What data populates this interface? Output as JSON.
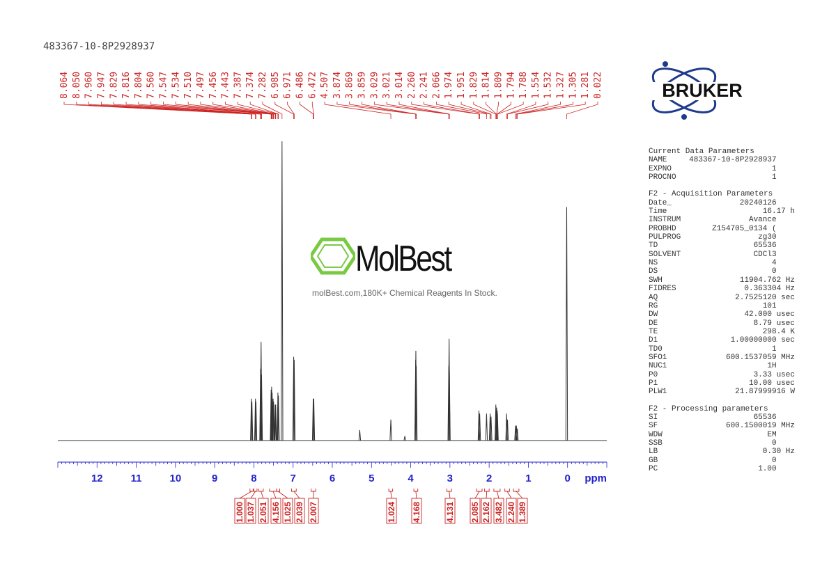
{
  "sample_id": "483367-10-8P2928937",
  "logo_text": "BRUKER",
  "watermark": {
    "name": "MolBest",
    "tagline": "molBest.com,180K+ Chemical Reagents In Stock."
  },
  "colors": {
    "spectrum": "#333333",
    "peak_labels": "#cc2222",
    "axis": "#2222cc",
    "logo_blue": "#1e3a8a",
    "watermark_green": "#7ac943"
  },
  "parameters": {
    "current": {
      "title": "Current Data Parameters",
      "rows": [
        [
          "NAME",
          "483367-10-8P2928937"
        ],
        [
          "EXPNO",
          "1"
        ],
        [
          "PROCNO",
          "1"
        ]
      ]
    },
    "acquisition": {
      "title": "F2 - Acquisition Parameters",
      "rows": [
        [
          "Date_",
          "20240126"
        ],
        [
          "Time",
          "16.17 h"
        ],
        [
          "INSTRUM",
          "Avance"
        ],
        [
          "PROBHD",
          "Z154705_0134 ("
        ],
        [
          "PULPROG",
          "zg30"
        ],
        [
          "TD",
          "65536"
        ],
        [
          "SOLVENT",
          "CDCl3"
        ],
        [
          "NS",
          "4"
        ],
        [
          "DS",
          "0"
        ],
        [
          "SWH",
          "11904.762 Hz"
        ],
        [
          "FIDRES",
          "0.363304 Hz"
        ],
        [
          "AQ",
          "2.7525120 sec"
        ],
        [
          "RG",
          "101"
        ],
        [
          "DW",
          "42.000 usec"
        ],
        [
          "DE",
          "8.79 usec"
        ],
        [
          "TE",
          "298.4 K"
        ],
        [
          "D1",
          "1.00000000 sec"
        ],
        [
          "TD0",
          "1"
        ],
        [
          "SFO1",
          "600.1537059 MHz"
        ],
        [
          "NUC1",
          "1H"
        ],
        [
          "P0",
          "3.33 usec"
        ],
        [
          "P1",
          "10.00 usec"
        ],
        [
          "PLW1",
          "21.87999916 W"
        ]
      ]
    },
    "processing": {
      "title": "F2 - Processing parameters",
      "rows": [
        [
          "SI",
          "65536"
        ],
        [
          "SF",
          "600.1500019 MHz"
        ],
        [
          "WDW",
          "EM"
        ],
        [
          "SSB",
          "0"
        ],
        [
          "LB",
          "0.30 Hz"
        ],
        [
          "GB",
          "0"
        ],
        [
          "PC",
          "1.00"
        ]
      ]
    }
  },
  "chart_data": {
    "type": "line",
    "xlabel": "ppm",
    "xlim": [
      13.0,
      -1.0
    ],
    "x_ticks": [
      "12",
      "11",
      "10",
      "9",
      "8",
      "7",
      "6",
      "5",
      "4",
      "3",
      "2",
      "1",
      "0"
    ],
    "peak_labels": [
      "8.064",
      "8.050",
      "7.960",
      "7.947",
      "7.829",
      "7.816",
      "7.804",
      "7.560",
      "7.547",
      "7.534",
      "7.510",
      "7.497",
      "7.456",
      "7.443",
      "7.387",
      "7.374",
      "7.282",
      "6.985",
      "6.971",
      "6.486",
      "6.472",
      "4.507",
      "3.874",
      "3.869",
      "3.859",
      "3.029",
      "3.021",
      "3.014",
      "2.260",
      "2.241",
      "2.066",
      "1.974",
      "1.951",
      "1.829",
      "1.814",
      "1.809",
      "1.794",
      "1.788",
      "1.554",
      "1.532",
      "1.327",
      "1.305",
      "1.281",
      "0.022"
    ],
    "peaks": [
      {
        "ppm": 8.064,
        "h": 0.14
      },
      {
        "ppm": 8.05,
        "h": 0.13
      },
      {
        "ppm": 7.96,
        "h": 0.14
      },
      {
        "ppm": 7.947,
        "h": 0.13
      },
      {
        "ppm": 7.829,
        "h": 0.24
      },
      {
        "ppm": 7.816,
        "h": 0.33
      },
      {
        "ppm": 7.804,
        "h": 0.22
      },
      {
        "ppm": 7.56,
        "h": 0.17
      },
      {
        "ppm": 7.547,
        "h": 0.18
      },
      {
        "ppm": 7.534,
        "h": 0.16
      },
      {
        "ppm": 7.51,
        "h": 0.14
      },
      {
        "ppm": 7.497,
        "h": 0.13
      },
      {
        "ppm": 7.456,
        "h": 0.12
      },
      {
        "ppm": 7.443,
        "h": 0.12
      },
      {
        "ppm": 7.387,
        "h": 0.16
      },
      {
        "ppm": 7.374,
        "h": 0.15
      },
      {
        "ppm": 7.282,
        "h": 1.0
      },
      {
        "ppm": 6.985,
        "h": 0.28
      },
      {
        "ppm": 6.971,
        "h": 0.27
      },
      {
        "ppm": 6.486,
        "h": 0.14
      },
      {
        "ppm": 6.472,
        "h": 0.14
      },
      {
        "ppm": 5.3,
        "h": 0.035
      },
      {
        "ppm": 4.507,
        "h": 0.07
      },
      {
        "ppm": 4.15,
        "h": 0.015
      },
      {
        "ppm": 3.874,
        "h": 0.27
      },
      {
        "ppm": 3.869,
        "h": 0.3
      },
      {
        "ppm": 3.859,
        "h": 0.25
      },
      {
        "ppm": 3.029,
        "h": 0.25
      },
      {
        "ppm": 3.021,
        "h": 0.34
      },
      {
        "ppm": 3.014,
        "h": 0.24
      },
      {
        "ppm": 2.26,
        "h": 0.1
      },
      {
        "ppm": 2.241,
        "h": 0.09
      },
      {
        "ppm": 2.066,
        "h": 0.09
      },
      {
        "ppm": 1.974,
        "h": 0.09
      },
      {
        "ppm": 1.951,
        "h": 0.08
      },
      {
        "ppm": 1.829,
        "h": 0.12
      },
      {
        "ppm": 1.814,
        "h": 0.1
      },
      {
        "ppm": 1.809,
        "h": 0.11
      },
      {
        "ppm": 1.794,
        "h": 0.1
      },
      {
        "ppm": 1.788,
        "h": 0.09
      },
      {
        "ppm": 1.554,
        "h": 0.09
      },
      {
        "ppm": 1.532,
        "h": 0.07
      },
      {
        "ppm": 1.327,
        "h": 0.05
      },
      {
        "ppm": 1.305,
        "h": 0.05
      },
      {
        "ppm": 1.281,
        "h": 0.04
      },
      {
        "ppm": 0.022,
        "h": 0.78
      }
    ],
    "integrals": [
      {
        "from": 8.1,
        "to": 8.02,
        "value": "1.000"
      },
      {
        "from": 8.0,
        "to": 7.92,
        "value": "1.037"
      },
      {
        "from": 7.88,
        "to": 7.76,
        "value": "2.051"
      },
      {
        "from": 7.6,
        "to": 7.42,
        "value": "4.156"
      },
      {
        "from": 7.42,
        "to": 7.34,
        "value": "1.025"
      },
      {
        "from": 7.04,
        "to": 6.92,
        "value": "2.039"
      },
      {
        "from": 6.54,
        "to": 6.42,
        "value": "2.007"
      },
      {
        "from": 4.56,
        "to": 4.46,
        "value": "1.024"
      },
      {
        "from": 3.92,
        "to": 3.82,
        "value": "4.168"
      },
      {
        "from": 3.08,
        "to": 2.96,
        "value": "4.131"
      },
      {
        "from": 2.32,
        "to": 2.18,
        "value": "2.085"
      },
      {
        "from": 2.12,
        "to": 2.0,
        "value": "2.162"
      },
      {
        "from": 1.88,
        "to": 1.72,
        "value": "3.482"
      },
      {
        "from": 1.6,
        "to": 1.48,
        "value": "2.240"
      },
      {
        "from": 1.38,
        "to": 1.24,
        "value": "1.389"
      }
    ]
  }
}
